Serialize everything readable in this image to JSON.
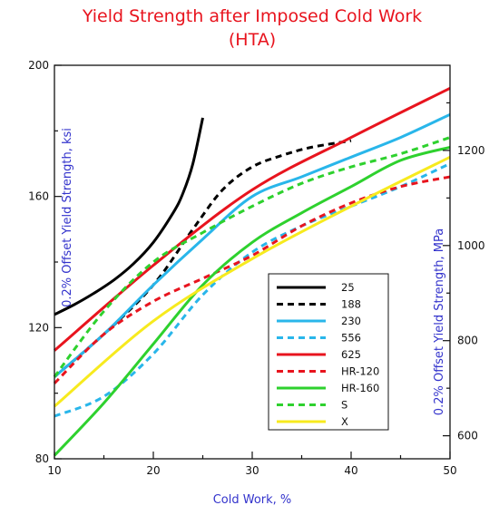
{
  "chart_data": {
    "type": "line",
    "title": "Yield Strength after Imposed Cold Work",
    "subtitle": "(HTA)",
    "xlabel": "Cold Work, %",
    "ylabel": "0.2% Offset Yield Strength, ksi",
    "y2label": "0.2% Offset Yield Strength, MPa",
    "xlim": [
      10,
      50
    ],
    "ylim": [
      80,
      200
    ],
    "y2lim": [
      551.6,
      1379
    ],
    "x_ticks": [
      10,
      20,
      30,
      40,
      50
    ],
    "y_ticks": [
      80,
      120,
      160,
      200
    ],
    "y2_ticks": [
      600,
      800,
      1000,
      1200
    ],
    "grid": false,
    "legend_position": "bottom-right",
    "colors": {
      "title": "#e8141e",
      "axis_label": "#3333cc",
      "axis": "#111111"
    },
    "series": [
      {
        "name": "25",
        "color": "#000000",
        "dash": "solid",
        "x": [
          10,
          12,
          14,
          16,
          18,
          20,
          22,
          23,
          24,
          25
        ],
        "y": [
          124,
          127,
          130.5,
          134.5,
          139.5,
          146,
          155,
          161,
          170,
          184
        ]
      },
      {
        "name": "188",
        "color": "#000000",
        "dash": "dashed",
        "x": [
          10,
          15,
          20,
          24,
          27,
          30,
          33,
          36,
          40
        ],
        "y": [
          105,
          118,
          133,
          150,
          162,
          169,
          172.5,
          175,
          177
        ]
      },
      {
        "name": "230",
        "color": "#29b6ea",
        "dash": "solid",
        "x": [
          10,
          15,
          20,
          25,
          30,
          35,
          40,
          45,
          50
        ],
        "y": [
          105,
          118,
          133,
          147,
          160,
          166,
          172,
          178,
          185
        ]
      },
      {
        "name": "556",
        "color": "#29b6ea",
        "dash": "dashed",
        "x": [
          10,
          15,
          20,
          25,
          30,
          35,
          40,
          45,
          50
        ],
        "y": [
          93,
          99,
          112,
          130,
          143,
          151,
          157,
          163,
          170
        ]
      },
      {
        "name": "625",
        "color": "#e8141e",
        "dash": "solid",
        "x": [
          10,
          20,
          30,
          40,
          50
        ],
        "y": [
          113,
          139,
          162,
          178,
          193
        ]
      },
      {
        "name": "HR-120",
        "color": "#e8141e",
        "dash": "dashed",
        "x": [
          10,
          15,
          20,
          25,
          30,
          35,
          40,
          45,
          50
        ],
        "y": [
          103,
          118,
          128,
          135,
          142,
          151,
          158,
          163,
          166
        ]
      },
      {
        "name": "HR-160",
        "color": "#2ed12e",
        "dash": "solid",
        "x": [
          10,
          15,
          20,
          25,
          30,
          35,
          40,
          45,
          50
        ],
        "y": [
          81,
          97,
          115,
          133,
          146,
          155,
          163,
          171,
          175
        ]
      },
      {
        "name": "S",
        "color": "#2ed12e",
        "dash": "dashed",
        "x": [
          10,
          15,
          20,
          25,
          30,
          35,
          40,
          45,
          50
        ],
        "y": [
          105,
          125,
          140,
          149,
          157,
          164,
          169,
          173,
          178
        ]
      },
      {
        "name": "X",
        "color": "#f7ea1e",
        "dash": "solid",
        "x": [
          10,
          20,
          30,
          40,
          50
        ],
        "y": [
          96,
          122,
          141,
          157,
          172
        ]
      }
    ]
  }
}
